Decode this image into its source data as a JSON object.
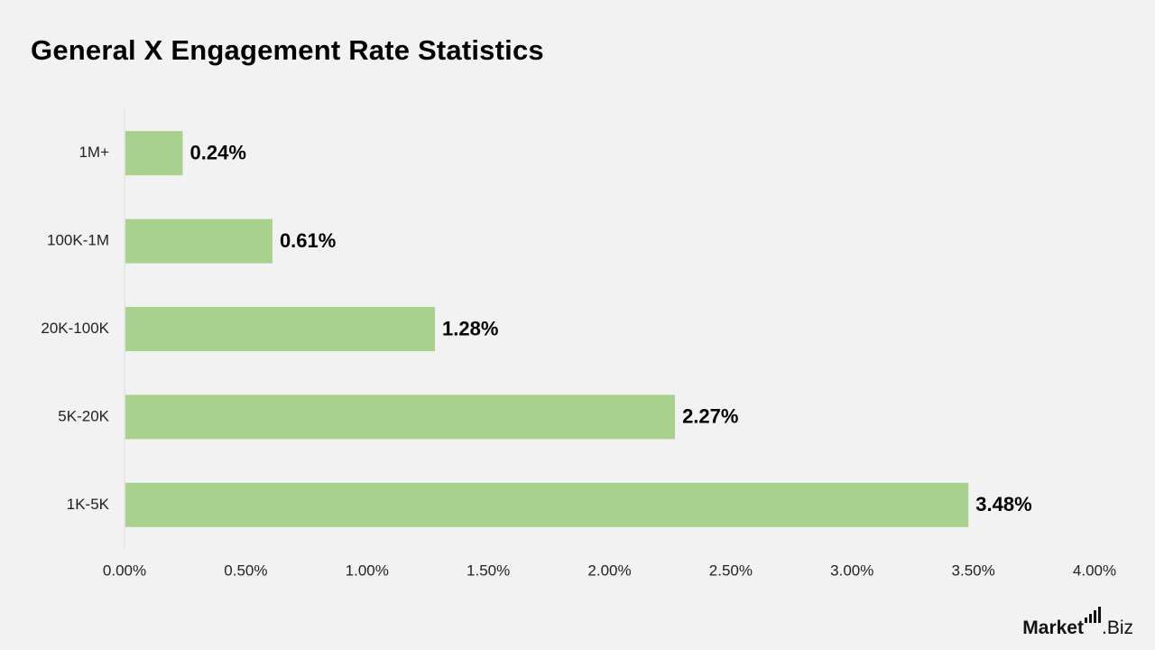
{
  "chart_data": {
    "type": "bar",
    "orientation": "horizontal",
    "title": "General X Engagement Rate Statistics",
    "categories": [
      "1M+",
      "100K-1M",
      "20K-100K",
      "5K-20K",
      "1K-5K"
    ],
    "values": [
      0.24,
      0.61,
      1.28,
      2.27,
      3.48
    ],
    "data_labels": [
      "0.24%",
      "0.61%",
      "1.28%",
      "2.27%",
      "3.48%"
    ],
    "xlim": [
      0,
      4
    ],
    "x_ticks": [
      0,
      0.5,
      1,
      1.5,
      2,
      2.5,
      3,
      3.5,
      4
    ],
    "x_tick_labels": [
      "0.00%",
      "0.50%",
      "1.00%",
      "1.50%",
      "2.00%",
      "2.50%",
      "3.00%",
      "3.50%",
      "4.00%"
    ],
    "xlabel": "",
    "ylabel": "",
    "grid": false,
    "legend": "none",
    "colors": {
      "bar": "#a9d18e",
      "background": "#f2f2f2",
      "text": "#000000",
      "axis": "#d9d9d9"
    }
  },
  "brand": {
    "main": "Market",
    "suffix": ".Biz",
    "icon": "bar-chart-icon"
  }
}
